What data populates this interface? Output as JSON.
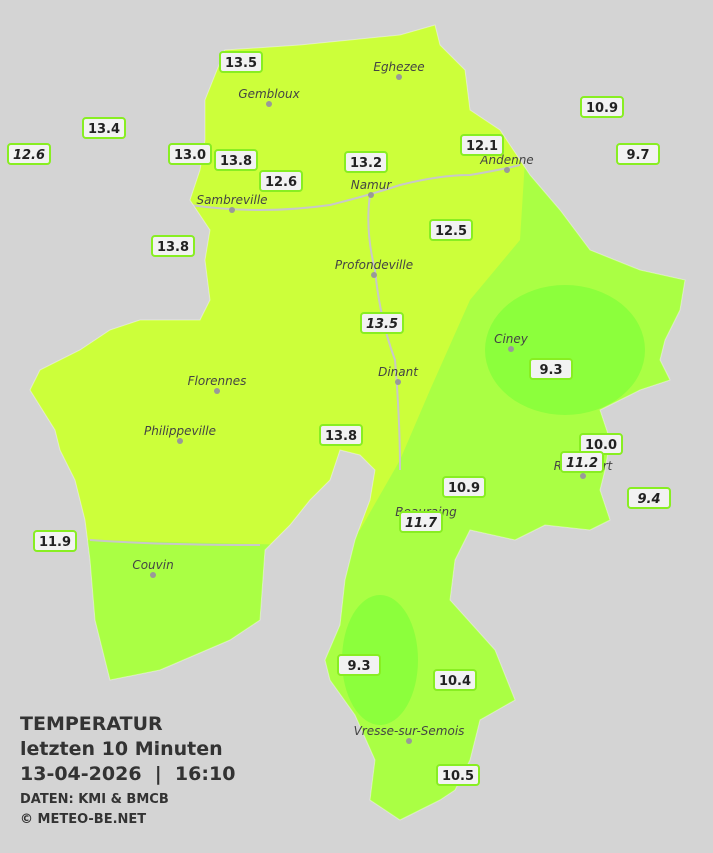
{
  "legend": {
    "title": "TEMPERATUR",
    "subtitle": "letzten 10 Minuten",
    "datetime": "13-04-2026  |  16:10",
    "source": "DATEN: KMI & BMCB",
    "copyright": "© METEO-BE.NET"
  },
  "cities": [
    "Eghezee",
    "Gembloux",
    "Andenne",
    "Namur",
    "Sambreville",
    "Profondeville",
    "Ciney",
    "Dinant",
    "Florennes",
    "Philippeville",
    "Rochefort",
    "Beauraing",
    "Couvin",
    "Vresse-sur-Semois"
  ],
  "stations": [
    "13.5",
    "13.4",
    "12.6",
    "13.0",
    "13.8",
    "12.6",
    "13.2",
    "12.1",
    "10.9",
    "9.7",
    "12.5",
    "13.8",
    "13.5",
    "9.3",
    "13.8",
    "10.0",
    "11.2",
    "10.9",
    "9.4",
    "11.7",
    "11.9",
    "9.3",
    "10.4",
    "10.5"
  ]
}
